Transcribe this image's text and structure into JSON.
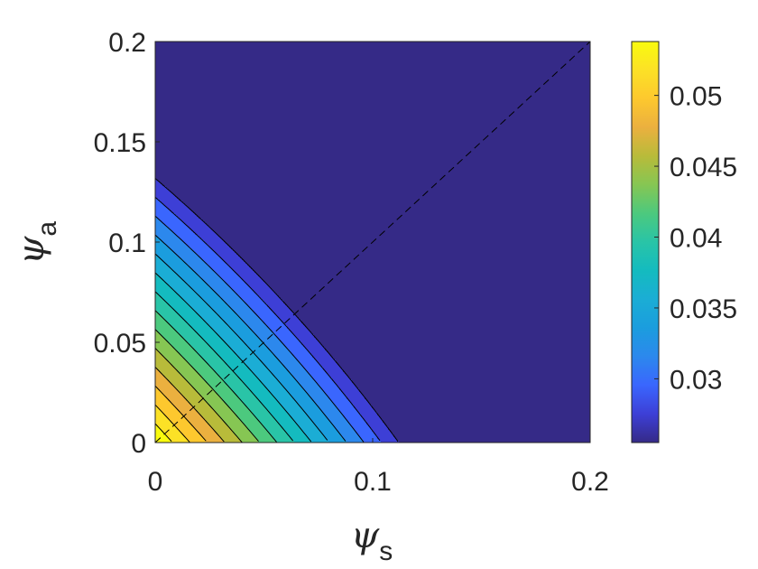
{
  "chart_data": {
    "type": "contourf",
    "title": "",
    "xlabel": {
      "symbol": "ψ",
      "subscript": "s"
    },
    "ylabel": {
      "symbol": "ψ",
      "subscript": "a"
    },
    "xlim": [
      0,
      0.2
    ],
    "ylim": [
      0,
      0.2
    ],
    "x_ticks": [
      "0",
      "0.1",
      "0.2"
    ],
    "y_ticks": [
      "0",
      "0.05",
      "0.1",
      "0.15",
      "0.2"
    ],
    "x_tick_values": [
      0,
      0.1,
      0.2
    ],
    "y_tick_values": [
      0,
      0.05,
      0.1,
      0.15,
      0.2
    ],
    "colorbar": {
      "colormap": "parula",
      "range": [
        0.0255,
        0.0538
      ],
      "ticks": [
        "0.03",
        "0.035",
        "0.04",
        "0.045",
        "0.05"
      ],
      "tick_values": [
        0.03,
        0.035,
        0.04,
        0.045,
        0.05
      ]
    },
    "contour_levels": [
      0.026,
      0.028,
      0.03,
      0.032,
      0.034,
      0.036,
      0.038,
      0.04,
      0.042,
      0.044,
      0.046,
      0.048,
      0.05,
      0.052
    ],
    "level_colors": [
      "#352a87",
      "#3d3fd6",
      "#3a66fe",
      "#2c88ed",
      "#1b9dde",
      "#1badd5",
      "#14bbbf",
      "#29c4a7",
      "#4cc97e",
      "#86c653",
      "#b8bb3a",
      "#ebb03f",
      "#fdc82e",
      "#fce126",
      "#f9fb0e"
    ],
    "contour_line_color": "#000000",
    "reference_line": {
      "style": "dashed",
      "from": [
        0,
        0
      ],
      "to": [
        0.2,
        0.2
      ]
    },
    "grid": false,
    "legend": "none"
  }
}
